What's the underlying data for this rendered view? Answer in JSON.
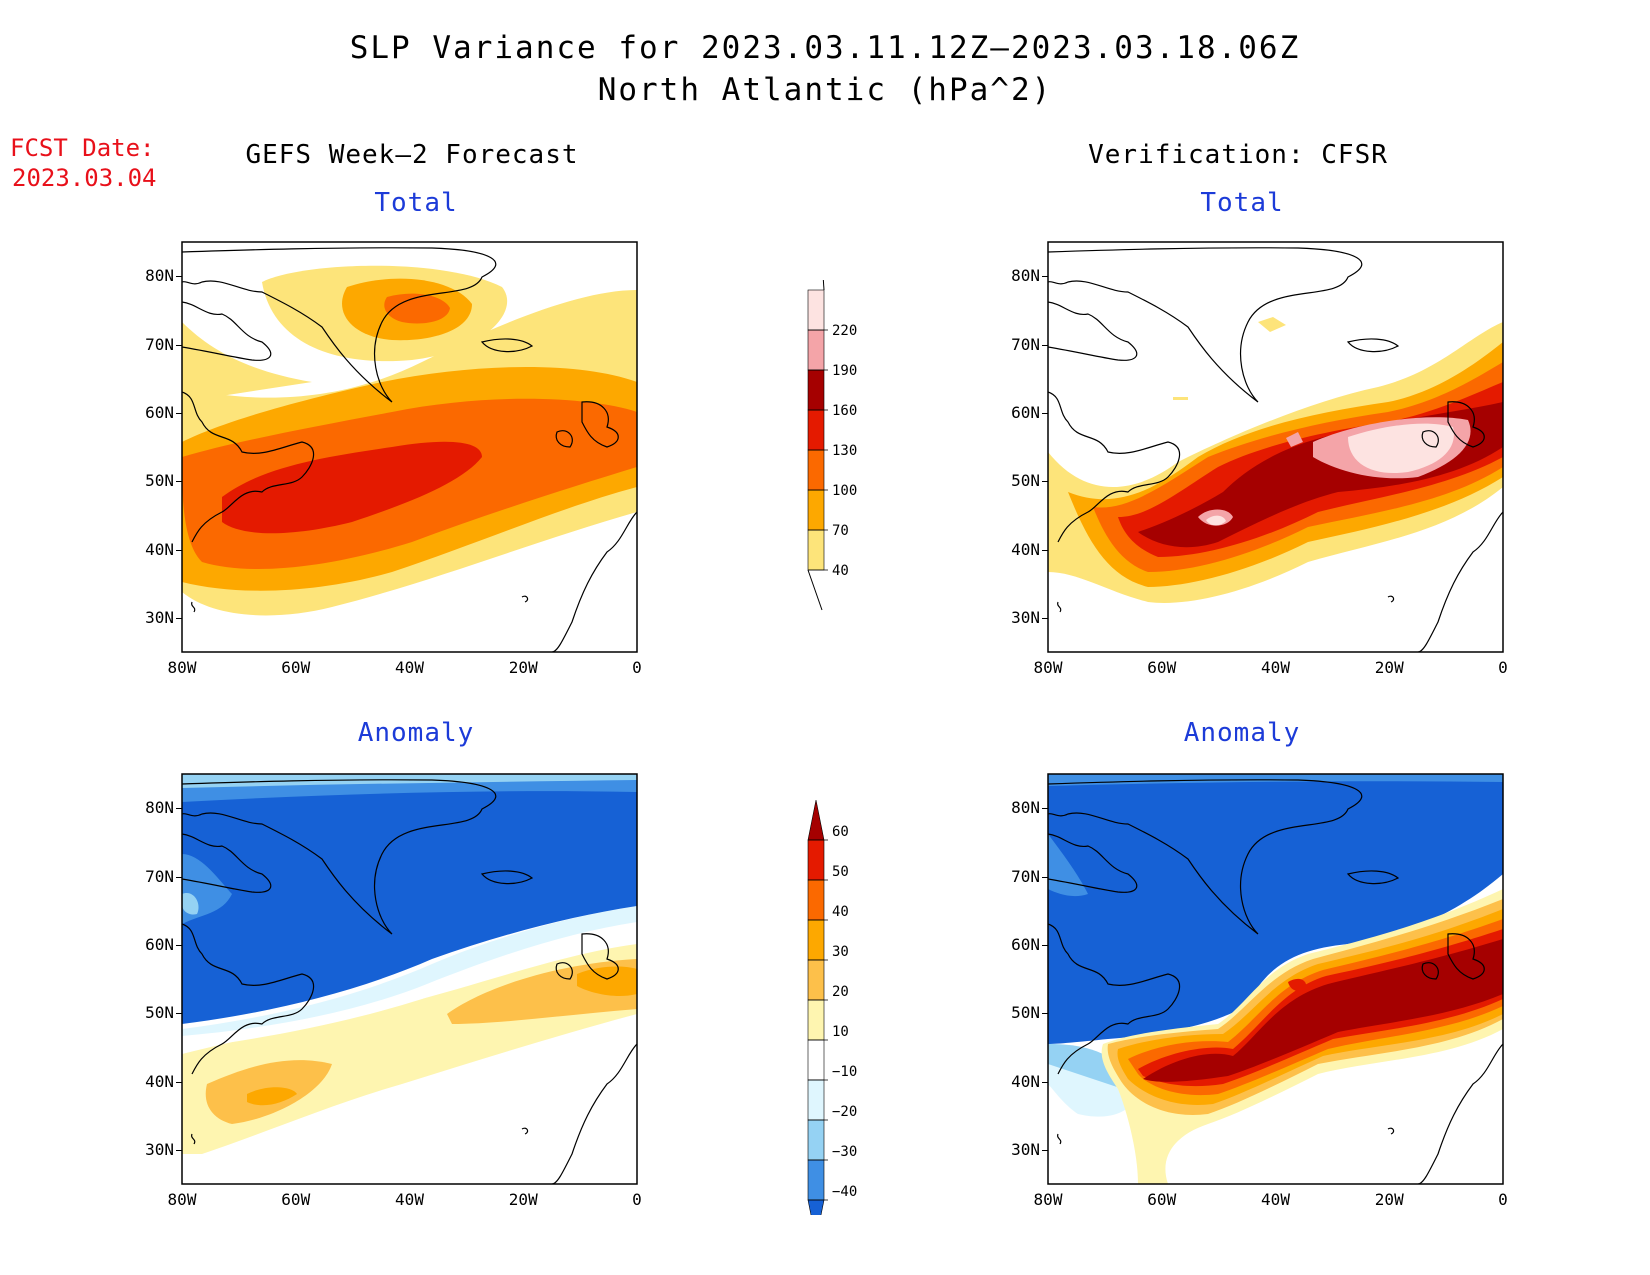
{
  "header": {
    "title_line1": "SLP Variance for 2023.03.11.12Z–2023.03.18.06Z",
    "title_line2": "North Atlantic (hPa^2)",
    "fcst_label": "FCST Date:",
    "fcst_date": "2023.03.04"
  },
  "columns": {
    "left_title": "GEFS Week–2 Forecast",
    "right_title": "Verification: CFSR"
  },
  "panels": {
    "total_label": "Total",
    "anomaly_label": "Anomaly"
  },
  "axes": {
    "lon_ticks": [
      "80W",
      "60W",
      "40W",
      "20W",
      "0"
    ],
    "lat_ticks": [
      "80N",
      "70N",
      "60N",
      "50N",
      "40N",
      "30N"
    ],
    "lon_range": [
      -80,
      0
    ],
    "lat_range": [
      25,
      85
    ]
  },
  "colorbars": {
    "total": {
      "levels": [
        "40",
        "70",
        "100",
        "130",
        "160",
        "190",
        "220"
      ],
      "colors": [
        "#fde47a",
        "#fda800",
        "#fb6900",
        "#e41a00",
        "#a50000",
        "#f4a4a8",
        "#fde3e1"
      ]
    },
    "anomaly": {
      "levels": [
        "60",
        "50",
        "40",
        "30",
        "20",
        "10",
        "−10",
        "−20",
        "−30",
        "−40"
      ],
      "colors": [
        "#a50000",
        "#e41a00",
        "#fb6900",
        "#fda800",
        "#fdc04a",
        "#fef5b0",
        "#ffffff",
        "#dff6fe",
        "#95d2f3",
        "#3f8fe4",
        "#1661d5"
      ]
    }
  }
}
